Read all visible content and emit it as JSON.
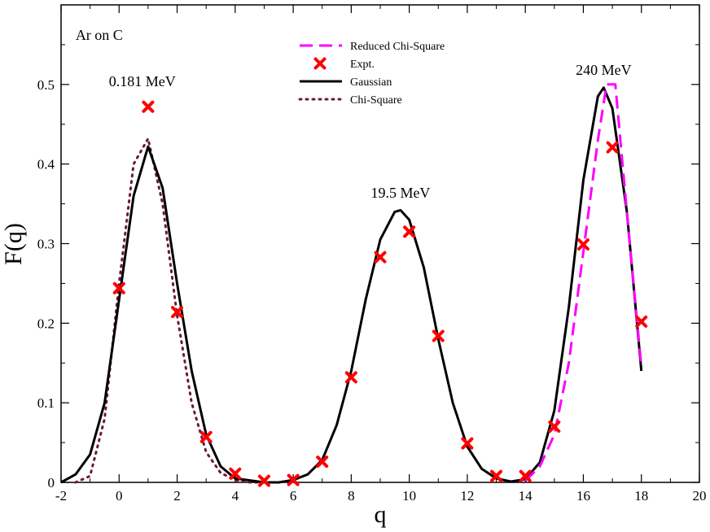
{
  "chart_data": {
    "type": "line",
    "title": "",
    "xlabel": "q",
    "ylabel": "F(q)",
    "xlim": [
      -2,
      20
    ],
    "ylim": [
      0,
      0.6
    ],
    "xticks": [
      -2,
      0,
      2,
      4,
      6,
      8,
      10,
      12,
      14,
      16,
      18,
      20
    ],
    "yticks": [
      0,
      0.1,
      0.2,
      0.3,
      0.4,
      0.5
    ],
    "xtick_labels": [
      "-2",
      "0",
      "2",
      "4",
      "6",
      "8",
      "10",
      "12",
      "14",
      "16",
      "18",
      "20"
    ],
    "ytick_labels": [
      "0",
      "0.1",
      "0.2",
      "0.3",
      "0.4",
      "0.5"
    ],
    "grid": false,
    "legend_position": "top-center",
    "annotations": [
      {
        "name": "system-label",
        "text": "Ar on C",
        "x": -1.5,
        "y": 0.556
      },
      {
        "name": "energy-label-0181",
        "text": "0.181 MeV",
        "x": 0.8,
        "y": 0.498
      },
      {
        "name": "energy-label-195",
        "text": "19.5 MeV",
        "x": 9.7,
        "y": 0.358
      },
      {
        "name": "energy-label-240",
        "text": "240 MeV",
        "x": 16.7,
        "y": 0.512
      }
    ],
    "series": [
      {
        "name": "Reduced Chi-Square",
        "style": "dashed",
        "color": "#ff00ff",
        "x": [
          14,
          14.5,
          15,
          15.5,
          16,
          16.5,
          16.8,
          17.1,
          17.5,
          18
        ],
        "y": [
          0.002,
          0.02,
          0.06,
          0.15,
          0.29,
          0.43,
          0.5,
          0.5,
          0.34,
          0.145
        ]
      },
      {
        "name": "Expt.",
        "style": "marker-x",
        "color": "#ff0000",
        "x": [
          0,
          1,
          2,
          3,
          4,
          5,
          6,
          7,
          8,
          9,
          10,
          11,
          12,
          13,
          14,
          15,
          16,
          17,
          18
        ],
        "y": [
          0.244,
          0.472,
          0.214,
          0.057,
          0.011,
          0.002,
          0.003,
          0.026,
          0.132,
          0.283,
          0.315,
          0.184,
          0.049,
          0.008,
          0.008,
          0.07,
          0.299,
          0.421,
          0.202
        ]
      },
      {
        "name": "Gaussian",
        "style": "solid",
        "color": "#000000",
        "x": [
          -2,
          -1.5,
          -1,
          -0.5,
          0,
          0.5,
          1,
          1.5,
          2,
          2.5,
          3,
          3.5,
          4,
          5,
          5.5,
          6,
          6.5,
          7,
          7.5,
          8,
          8.5,
          9,
          9.5,
          9.7,
          10,
          10.5,
          11,
          11.5,
          12,
          12.5,
          13,
          13.5,
          14,
          14.5,
          15,
          15.5,
          16,
          16.5,
          16.7,
          17,
          17.5,
          18
        ],
        "y": [
          0.0,
          0.01,
          0.035,
          0.1,
          0.23,
          0.36,
          0.422,
          0.37,
          0.25,
          0.14,
          0.06,
          0.02,
          0.005,
          0.0,
          0.0,
          0.003,
          0.01,
          0.028,
          0.072,
          0.14,
          0.23,
          0.305,
          0.34,
          0.342,
          0.33,
          0.27,
          0.18,
          0.1,
          0.045,
          0.017,
          0.005,
          0.001,
          0.004,
          0.025,
          0.09,
          0.22,
          0.38,
          0.485,
          0.496,
          0.47,
          0.34,
          0.14
        ]
      },
      {
        "name": "Chi-Square",
        "style": "dotted",
        "color": "#6b1840",
        "x": [
          -1.5,
          -1,
          -0.5,
          0,
          0.5,
          1,
          1.5,
          2,
          2.5,
          3,
          3.5,
          4,
          4.5,
          5
        ],
        "y": [
          0.0,
          0.008,
          0.08,
          0.25,
          0.4,
          0.432,
          0.35,
          0.21,
          0.1,
          0.038,
          0.012,
          0.003,
          0.0,
          0.0
        ]
      }
    ]
  }
}
